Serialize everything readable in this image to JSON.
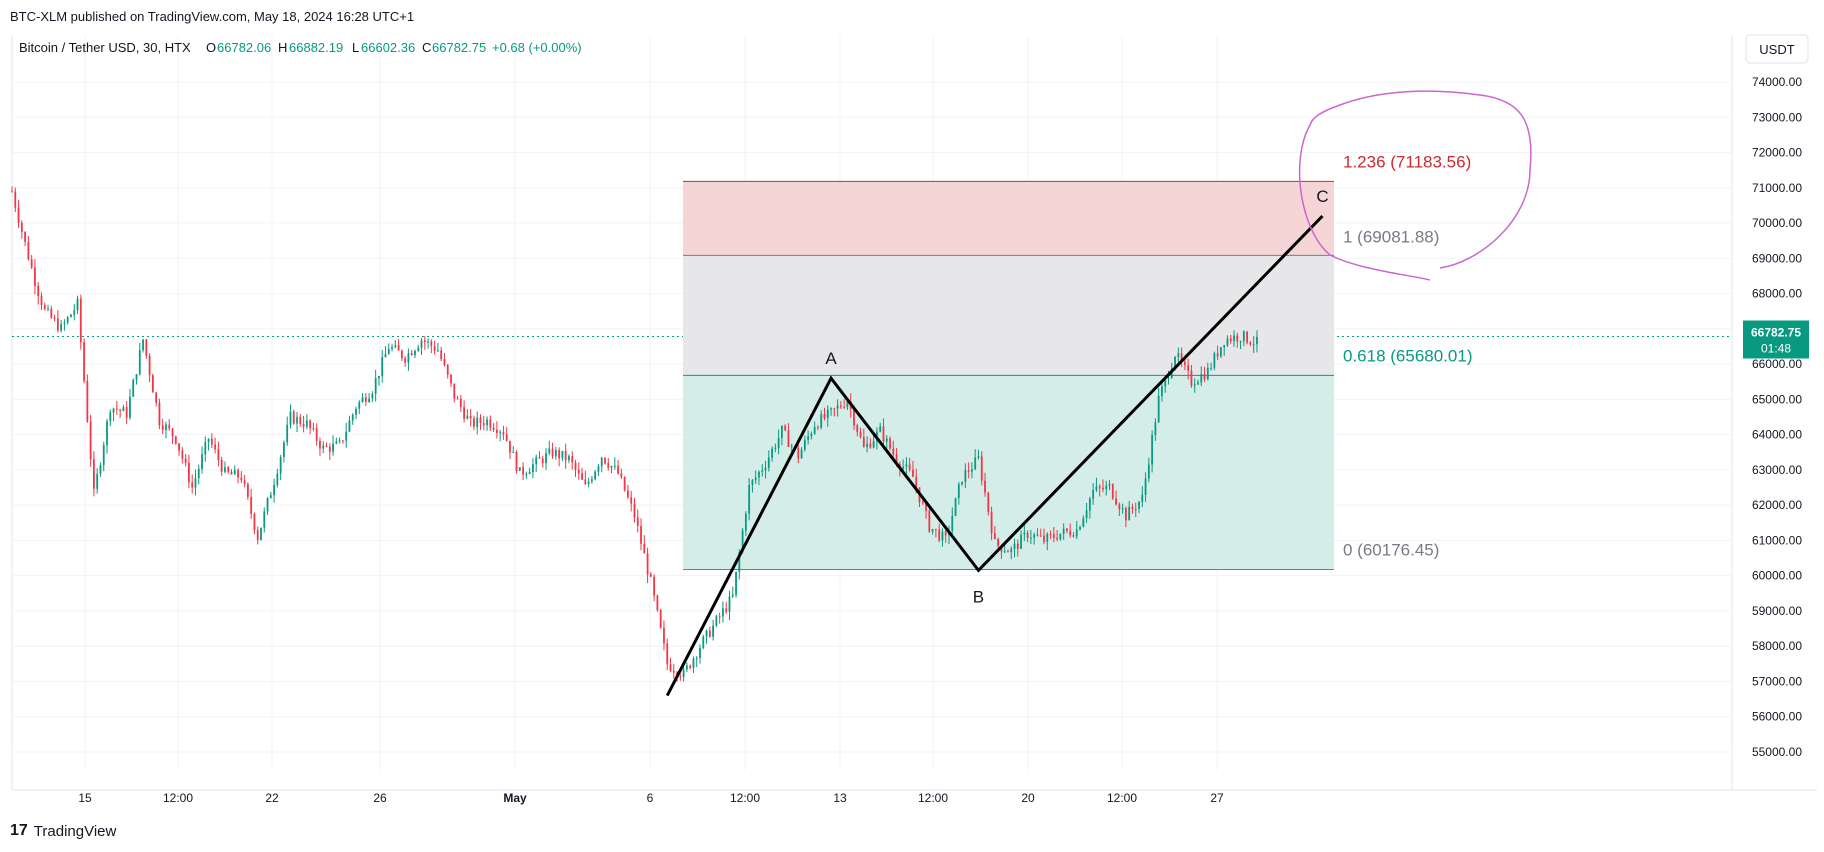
{
  "header": {
    "publish_line": "BTC-XLM published on TradingView.com, May 18, 2024 16:28 UTC+1"
  },
  "footer": {
    "brand": "TradingView",
    "logo_text": "17"
  },
  "chart_data": {
    "type": "candlestick",
    "symbol_line": {
      "name": "Bitcoin / Tether USD, 30, HTX",
      "o_label": "O",
      "o_value": "66782.06",
      "h_label": "H",
      "h_value": "66882.19",
      "l_label": "L",
      "l_value": "66602.36",
      "c_label": "C",
      "c_value": "66782.75",
      "change": "+0.68 (+0.00%)"
    },
    "currency_button": "USDT",
    "ylim": [
      55000,
      74000
    ],
    "y_ticks": [
      "74000.00",
      "73000.00",
      "72000.00",
      "71000.00",
      "70000.00",
      "69000.00",
      "68000.00",
      "67000.00",
      "66000.00",
      "65000.00",
      "64000.00",
      "63000.00",
      "62000.00",
      "61000.00",
      "60000.00",
      "59000.00",
      "58000.00",
      "57000.00",
      "56000.00",
      "55000.00"
    ],
    "x_ticks": [
      "15",
      "12:00",
      "22",
      "26",
      "May",
      "6",
      "12:00",
      "13",
      "12:00",
      "20",
      "12:00",
      "27"
    ],
    "last_price": {
      "value": "66782.75",
      "countdown": "01:48",
      "color": "#089981"
    },
    "price_path": [
      [
        0,
        70900
      ],
      [
        3,
        69500
      ],
      [
        6,
        68200
      ],
      [
        8,
        67500
      ],
      [
        12,
        67000
      ],
      [
        16,
        67700
      ],
      [
        20,
        62300
      ],
      [
        24,
        64800
      ],
      [
        28,
        64600
      ],
      [
        32,
        66700
      ],
      [
        36,
        64400
      ],
      [
        40,
        63900
      ],
      [
        44,
        62500
      ],
      [
        48,
        63900
      ],
      [
        52,
        62900
      ],
      [
        56,
        62800
      ],
      [
        60,
        61100
      ],
      [
        64,
        62700
      ],
      [
        68,
        64500
      ],
      [
        72,
        64300
      ],
      [
        76,
        63600
      ],
      [
        80,
        63700
      ],
      [
        84,
        64800
      ],
      [
        88,
        65300
      ],
      [
        92,
        66500
      ],
      [
        96,
        66200
      ],
      [
        100,
        66700
      ],
      [
        104,
        66400
      ],
      [
        108,
        65100
      ],
      [
        112,
        64300
      ],
      [
        116,
        64400
      ],
      [
        120,
        64100
      ],
      [
        124,
        62900
      ],
      [
        128,
        63200
      ],
      [
        132,
        63500
      ],
      [
        136,
        63300
      ],
      [
        140,
        62500
      ],
      [
        144,
        63400
      ],
      [
        148,
        62900
      ],
      [
        152,
        61700
      ],
      [
        156,
        59800
      ],
      [
        160,
        57500
      ],
      [
        164,
        57200
      ],
      [
        168,
        58000
      ],
      [
        172,
        58700
      ],
      [
        176,
        59400
      ],
      [
        180,
        62500
      ],
      [
        184,
        63200
      ],
      [
        188,
        64100
      ],
      [
        192,
        63400
      ],
      [
        196,
        64300
      ],
      [
        200,
        64600
      ],
      [
        204,
        65000
      ],
      [
        208,
        63600
      ],
      [
        212,
        64100
      ],
      [
        216,
        63300
      ],
      [
        220,
        62800
      ],
      [
        224,
        61400
      ],
      [
        228,
        61000
      ],
      [
        232,
        62800
      ],
      [
        236,
        63300
      ],
      [
        240,
        60900
      ],
      [
        244,
        60700
      ],
      [
        248,
        61200
      ],
      [
        252,
        61000
      ],
      [
        256,
        61200
      ],
      [
        260,
        61300
      ],
      [
        264,
        62400
      ],
      [
        268,
        62500
      ],
      [
        272,
        61700
      ],
      [
        276,
        62200
      ],
      [
        280,
        65000
      ],
      [
        284,
        66300
      ],
      [
        288,
        65500
      ],
      [
        292,
        65800
      ],
      [
        296,
        66700
      ],
      [
        300,
        66800
      ],
      [
        304,
        66600
      ]
    ],
    "x_extent": 420,
    "fib": {
      "levels": [
        {
          "label": "1.236 (71183.56)",
          "price": 71183.56,
          "color": "#cc2a2f"
        },
        {
          "label": "1 (69081.88)",
          "price": 69081.88,
          "color": "#787b86"
        },
        {
          "label": "0.618 (65680.01)",
          "price": 65680.01,
          "color": "#089981"
        },
        {
          "label": "0 (60176.45)",
          "price": 60176.45,
          "color": "#787b86"
        }
      ]
    },
    "abc_pattern": [
      {
        "label": "",
        "x": 160,
        "price": 56600
      },
      {
        "label": "A",
        "x": 200,
        "price": 65600
      },
      {
        "label": "B",
        "x": 236,
        "price": 60150
      },
      {
        "label": "C",
        "x": 320,
        "price": 70200
      }
    ],
    "colors": {
      "up": "#089981",
      "down": "#f23645",
      "fib_top_fill": "#f5d5d6",
      "fib_mid_fill": "#e7e7ea",
      "fib_low_fill": "#d4ede9",
      "circle": "#cc66cc"
    }
  }
}
